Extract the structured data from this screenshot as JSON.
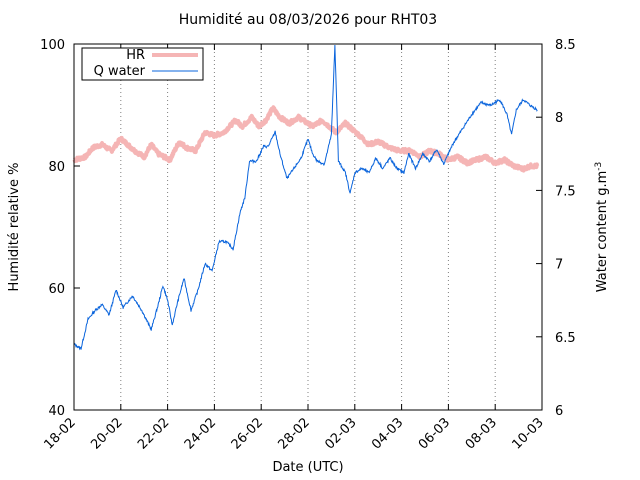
{
  "chart_data": {
    "type": "line",
    "title": "Humidité au 08/03/2026 pour RHT03",
    "xlabel": "Date (UTC)",
    "ylabel_left": "Humidité relative %",
    "ylabel_right_base": "Water content g.m",
    "ylabel_right_sup": "-3",
    "x_ticks": [
      "18-02",
      "20-02",
      "22-02",
      "24-02",
      "26-02",
      "28-02",
      "02-03",
      "04-03",
      "06-03",
      "08-03",
      "10-03"
    ],
    "x_range_days": [
      0,
      20
    ],
    "ylim_left": [
      40,
      100
    ],
    "yticks_left": [
      40,
      60,
      80,
      100
    ],
    "ylim_right": [
      6,
      8.5
    ],
    "yticks_right": [
      "6",
      "6.5",
      "7",
      "7.5",
      "8",
      "8.5"
    ],
    "grid": "vertical dotted at x ticks",
    "legend_position": "top-left",
    "series": [
      {
        "name": "HR",
        "axis": "left",
        "color": "#f5b5b5",
        "points": [
          [
            0,
            81
          ],
          [
            0.5,
            81.5
          ],
          [
            0.8,
            83
          ],
          [
            1.2,
            83.5
          ],
          [
            1.6,
            82.5
          ],
          [
            2.0,
            84.5
          ],
          [
            2.3,
            83.5
          ],
          [
            2.6,
            82.5
          ],
          [
            3.0,
            81.5
          ],
          [
            3.3,
            83.5
          ],
          [
            3.6,
            82
          ],
          [
            4.1,
            81
          ],
          [
            4.5,
            84
          ],
          [
            4.8,
            83
          ],
          [
            5.2,
            82.5
          ],
          [
            5.6,
            85.5
          ],
          [
            6.0,
            85
          ],
          [
            6.4,
            85.5
          ],
          [
            6.9,
            87.5
          ],
          [
            7.2,
            86.5
          ],
          [
            7.6,
            88
          ],
          [
            7.9,
            86.5
          ],
          [
            8.2,
            87.5
          ],
          [
            8.5,
            89.5
          ],
          [
            8.8,
            88
          ],
          [
            9.2,
            87
          ],
          [
            9.6,
            88
          ],
          [
            9.9,
            87.2
          ],
          [
            10.2,
            86.5
          ],
          [
            10.6,
            87.5
          ],
          [
            10.9,
            86.5
          ],
          [
            11.2,
            85.5
          ],
          [
            11.6,
            87
          ],
          [
            11.9,
            86
          ],
          [
            12.2,
            85
          ],
          [
            12.6,
            83.5
          ],
          [
            13.0,
            84
          ],
          [
            13.5,
            83
          ],
          [
            13.9,
            82.5
          ],
          [
            14.4,
            82.5
          ],
          [
            14.8,
            81.5
          ],
          [
            15.2,
            82.5
          ],
          [
            15.6,
            82
          ],
          [
            16.0,
            81
          ],
          [
            16.4,
            81.5
          ],
          [
            16.8,
            80.5
          ],
          [
            17.2,
            81
          ],
          [
            17.6,
            81.5
          ],
          [
            18.0,
            80.5
          ],
          [
            18.4,
            81
          ],
          [
            18.8,
            80
          ],
          [
            19.2,
            79.5
          ],
          [
            19.5,
            80
          ],
          [
            19.8,
            80
          ]
        ]
      },
      {
        "name": "Q water",
        "axis": "right",
        "color": "#0a64dc",
        "points": [
          [
            0,
            6.45
          ],
          [
            0.3,
            6.42
          ],
          [
            0.6,
            6.62
          ],
          [
            0.9,
            6.68
          ],
          [
            1.2,
            6.72
          ],
          [
            1.5,
            6.65
          ],
          [
            1.8,
            6.82
          ],
          [
            2.1,
            6.7
          ],
          [
            2.5,
            6.78
          ],
          [
            2.9,
            6.68
          ],
          [
            3.3,
            6.55
          ],
          [
            3.6,
            6.72
          ],
          [
            3.8,
            6.85
          ],
          [
            4.0,
            6.75
          ],
          [
            4.2,
            6.58
          ],
          [
            4.4,
            6.72
          ],
          [
            4.7,
            6.9
          ],
          [
            5.0,
            6.68
          ],
          [
            5.3,
            6.82
          ],
          [
            5.6,
            7.0
          ],
          [
            5.9,
            6.95
          ],
          [
            6.2,
            7.15
          ],
          [
            6.5,
            7.15
          ],
          [
            6.8,
            7.1
          ],
          [
            7.1,
            7.35
          ],
          [
            7.3,
            7.45
          ],
          [
            7.5,
            7.7
          ],
          [
            7.8,
            7.7
          ],
          [
            8.1,
            7.8
          ],
          [
            8.3,
            7.8
          ],
          [
            8.6,
            7.9
          ],
          [
            8.8,
            7.75
          ],
          [
            9.1,
            7.58
          ],
          [
            9.4,
            7.65
          ],
          [
            9.7,
            7.72
          ],
          [
            10.0,
            7.85
          ],
          [
            10.2,
            7.75
          ],
          [
            10.4,
            7.7
          ],
          [
            10.7,
            7.68
          ],
          [
            11.0,
            7.88
          ],
          [
            11.15,
            8.5
          ],
          [
            11.3,
            7.7
          ],
          [
            11.6,
            7.62
          ],
          [
            11.8,
            7.48
          ],
          [
            12.0,
            7.62
          ],
          [
            12.3,
            7.65
          ],
          [
            12.6,
            7.62
          ],
          [
            12.9,
            7.72
          ],
          [
            13.2,
            7.65
          ],
          [
            13.5,
            7.72
          ],
          [
            13.8,
            7.65
          ],
          [
            14.1,
            7.62
          ],
          [
            14.3,
            7.75
          ],
          [
            14.6,
            7.65
          ],
          [
            14.9,
            7.75
          ],
          [
            15.2,
            7.7
          ],
          [
            15.5,
            7.78
          ],
          [
            15.8,
            7.68
          ],
          [
            16.2,
            7.82
          ],
          [
            16.6,
            7.92
          ],
          [
            17.0,
            8.02
          ],
          [
            17.4,
            8.1
          ],
          [
            17.8,
            8.08
          ],
          [
            18.2,
            8.12
          ],
          [
            18.5,
            8.02
          ],
          [
            18.7,
            7.88
          ],
          [
            18.9,
            8.05
          ],
          [
            19.2,
            8.12
          ],
          [
            19.5,
            8.08
          ],
          [
            19.8,
            8.05
          ]
        ]
      }
    ]
  }
}
